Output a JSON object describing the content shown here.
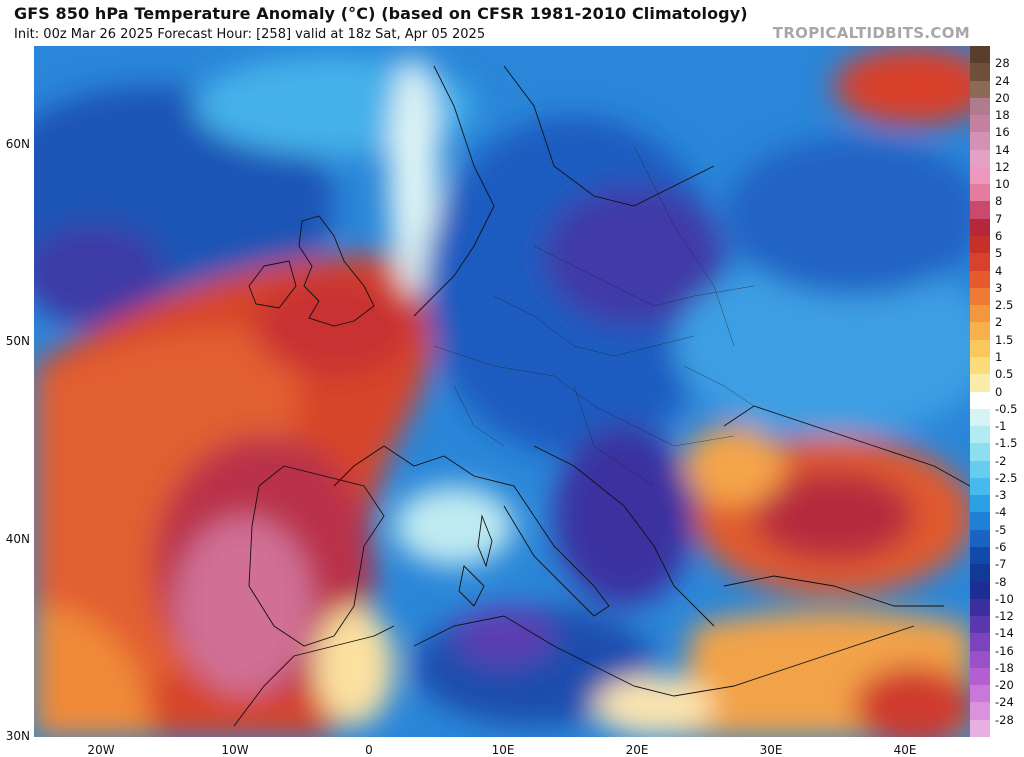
{
  "header": {
    "title": "GFS 850 hPa Temperature Anomaly (°C) (based on CFSR 1981-2010 Climatology)",
    "subtitle": "Init: 00z Mar 26 2025   Forecast Hour: [258]   valid at 18z Sat, Apr 05 2025",
    "watermark": "TROPICALTIDBITS.COM"
  },
  "map": {
    "lat_labels": [
      "60N",
      "50N",
      "40N",
      "30N"
    ],
    "lon_labels": [
      "20W",
      "10W",
      "0",
      "10E",
      "20E",
      "30E",
      "40E"
    ]
  },
  "colorbar": {
    "labels": [
      "28",
      "24",
      "20",
      "18",
      "16",
      "14",
      "12",
      "10",
      "8",
      "7",
      "6",
      "5",
      "4",
      "3",
      "2.5",
      "2",
      "1.5",
      "1",
      "0.5",
      "0",
      "-0.5",
      "-1",
      "-1.5",
      "-2",
      "-2.5",
      "-3",
      "-4",
      "-5",
      "-6",
      "-7",
      "-8",
      "-10",
      "-12",
      "-14",
      "-16",
      "-18",
      "-20",
      "-24",
      "-28"
    ],
    "colors": [
      "#6e4f3a",
      "#8c6a55",
      "#b07a8f",
      "#c4819f",
      "#d391b3",
      "#e2a1c5",
      "#ee98c0",
      "#e37c9e",
      "#c94a6d",
      "#b5273b",
      "#c5302a",
      "#d8412b",
      "#e65a2d",
      "#ed7a35",
      "#f3973f",
      "#f7b04a",
      "#f9c75c",
      "#fadc7a",
      "#fbeba8",
      "#ffffff",
      "#d6f3f5",
      "#b2ebf1",
      "#8cdff0",
      "#66cdee",
      "#48b9ec",
      "#2d9fe4",
      "#1f80d6",
      "#1863c3",
      "#124aac",
      "#103a96",
      "#1e2d93",
      "#3a2f9c",
      "#5b38ad",
      "#7a44bd",
      "#9951c8",
      "#b35fd0",
      "#c977d8",
      "#d992db",
      "#e6b0e2"
    ]
  }
}
